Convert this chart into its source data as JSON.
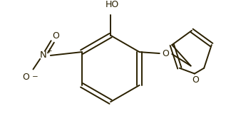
{
  "bg_color": "#ffffff",
  "line_color": "#2a2000",
  "line_width": 1.4,
  "font_size": 8.5,
  "fig_width": 3.17,
  "fig_height": 1.87,
  "dpi": 100,
  "xlim": [
    0,
    317
  ],
  "ylim": [
    0,
    187
  ]
}
